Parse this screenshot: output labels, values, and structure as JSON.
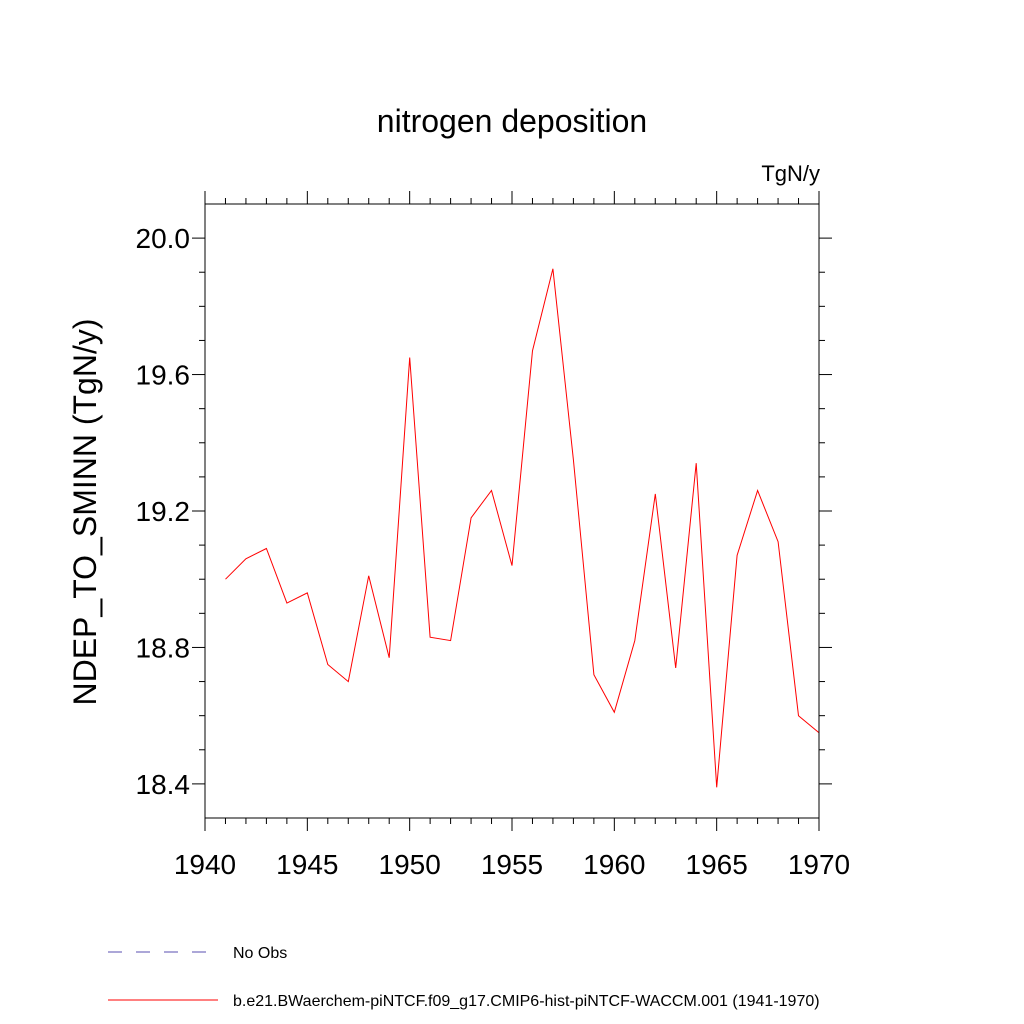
{
  "chart_data": {
    "type": "line",
    "title": "nitrogen deposition",
    "units_label": "TgN/y",
    "xlabel": "",
    "ylabel": "NDEP_TO_SMINN  (TgN/y)",
    "xlim": [
      1940,
      1970
    ],
    "ylim": [
      18.3,
      20.1
    ],
    "x_ticks": [
      1940,
      1945,
      1950,
      1955,
      1960,
      1965,
      1970
    ],
    "x_tick_labels": [
      "1940",
      "1945",
      "1950",
      "1955",
      "1960",
      "1965",
      "1970"
    ],
    "y_ticks": [
      18.4,
      18.8,
      19.2,
      19.6,
      20.0
    ],
    "y_tick_labels": [
      "18.4",
      "18.8",
      "19.2",
      "19.6",
      "20.0"
    ],
    "grid": false,
    "series": [
      {
        "name": "b.e21.BWaerchem-piNTCF.f09_g17.CMIP6-hist-piNTCF-WACCM.001 (1941-1970)",
        "color": "#ff0000",
        "x": [
          1941,
          1942,
          1943,
          1944,
          1945,
          1946,
          1947,
          1948,
          1949,
          1950,
          1951,
          1952,
          1953,
          1954,
          1955,
          1956,
          1957,
          1958,
          1959,
          1960,
          1961,
          1962,
          1963,
          1964,
          1965,
          1966,
          1967,
          1968,
          1969,
          1970
        ],
        "values": [
          19.0,
          19.06,
          19.09,
          18.93,
          18.96,
          18.75,
          18.7,
          19.01,
          18.77,
          19.65,
          18.83,
          18.82,
          19.18,
          19.26,
          19.04,
          19.67,
          19.91,
          19.35,
          18.72,
          18.61,
          18.82,
          19.25,
          18.74,
          19.34,
          18.39,
          19.07,
          19.26,
          19.11,
          18.6,
          18.55
        ]
      }
    ],
    "legend": {
      "position": "bottom",
      "entries": [
        {
          "label": "No Obs",
          "style": "dashed",
          "color": "#5a4fb0"
        },
        {
          "label": "b.e21.BWaerchem-piNTCF.f09_g17.CMIP6-hist-piNTCF-WACCM.001 (1941-1970)",
          "style": "solid",
          "color": "#ff0000"
        }
      ]
    }
  }
}
